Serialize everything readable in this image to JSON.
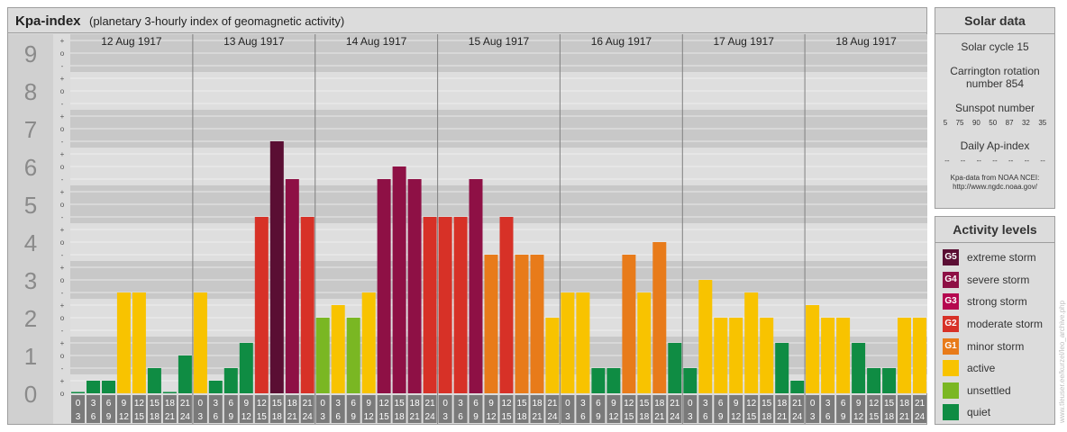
{
  "header": {
    "title": "Kpa-index",
    "subtitle": "(planetary 3-hourly index of geomagnetic activity)"
  },
  "chart_data": {
    "type": "bar",
    "title": "Kpa-index",
    "subtitle": "(planetary 3-hourly index of geomagnetic activity)",
    "ylim": [
      0,
      9
    ],
    "y_ticks": [
      "0",
      "1",
      "2",
      "3",
      "4",
      "5",
      "6",
      "7",
      "8",
      "9"
    ],
    "sub_ticks": [
      "-",
      "o",
      "+"
    ],
    "days": [
      "12 Aug 1917",
      "13 Aug 1917",
      "14 Aug 1917",
      "15 Aug 1917",
      "16 Aug 1917",
      "17 Aug 1917",
      "18 Aug 1917"
    ],
    "interval_labels": [
      [
        "0",
        "3"
      ],
      [
        "3",
        "6"
      ],
      [
        "6",
        "9"
      ],
      [
        "9",
        "12"
      ],
      [
        "12",
        "15"
      ],
      [
        "15",
        "18"
      ],
      [
        "18",
        "21"
      ],
      [
        "21",
        "24"
      ]
    ],
    "values": [
      [
        0.0,
        0.333,
        0.333,
        2.667,
        2.667,
        0.667,
        0.0,
        1.0
      ],
      [
        2.667,
        0.333,
        0.667,
        1.333,
        4.667,
        6.667,
        5.667,
        4.667
      ],
      [
        2.0,
        2.333,
        2.0,
        2.667,
        5.667,
        6.0,
        5.667,
        4.667
      ],
      [
        4.667,
        4.667,
        5.667,
        3.667,
        4.667,
        3.667,
        3.667,
        2.0
      ],
      [
        2.667,
        2.667,
        0.667,
        0.667,
        3.667,
        2.667,
        4.0,
        1.333
      ],
      [
        0.667,
        3.0,
        2.0,
        2.0,
        2.667,
        2.0,
        1.333,
        0.333
      ],
      [
        2.333,
        2.0,
        2.0,
        1.333,
        0.667,
        0.667,
        2.0,
        2.0
      ]
    ],
    "levels": [
      [
        0,
        0,
        0,
        2,
        2,
        0,
        0,
        0
      ],
      [
        2,
        0,
        0,
        0,
        4,
        7,
        6,
        4
      ],
      [
        1,
        2,
        1,
        2,
        6,
        6,
        6,
        4
      ],
      [
        4,
        4,
        6,
        3,
        4,
        3,
        3,
        2
      ],
      [
        2,
        2,
        0,
        0,
        3,
        2,
        3,
        0
      ],
      [
        0,
        2,
        2,
        2,
        2,
        2,
        0,
        0
      ],
      [
        2,
        2,
        2,
        0,
        0,
        0,
        2,
        2
      ]
    ],
    "grid": true,
    "legend_position": "right"
  },
  "solar": {
    "title": "Solar data",
    "cycle": "Solar cycle 15",
    "carrington_line1": "Carrington rotation",
    "carrington_line2": "number 854",
    "sunspot_title": "Sunspot number",
    "sunspot_values": [
      "5",
      "75",
      "90",
      "50",
      "87",
      "32",
      "35"
    ],
    "ap_title": "Daily Ap-index",
    "ap_values": [
      "--",
      "--",
      "--",
      "--",
      "--",
      "--",
      "--"
    ],
    "credit_line1": "Kpa-data from NOAA NCEI:",
    "credit_line2": "http://www.ngdc.noaa.gov/"
  },
  "activity": {
    "title": "Activity levels",
    "items": [
      {
        "badge": "G5",
        "label": "extreme storm",
        "color": "#5a0e33"
      },
      {
        "badge": "G4",
        "label": "severe storm",
        "color": "#8e1045"
      },
      {
        "badge": "G3",
        "label": "strong storm",
        "color": "#b5064f"
      },
      {
        "badge": "G2",
        "label": "moderate storm",
        "color": "#d73127"
      },
      {
        "badge": "G1",
        "label": "minor storm",
        "color": "#e87b1a"
      },
      {
        "badge": "",
        "label": "active",
        "color": "#f8c300"
      },
      {
        "badge": "",
        "label": "unsettled",
        "color": "#7ab723"
      },
      {
        "badge": "",
        "label": "quiet",
        "color": "#0f8c43"
      }
    ]
  },
  "side_credit": "www.tleuser.ee/kurzel/leo_archive.php"
}
